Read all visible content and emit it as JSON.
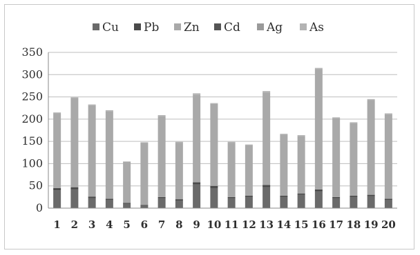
{
  "chart_data": {
    "type": "bar",
    "stacked": true,
    "categories": [
      "1",
      "2",
      "3",
      "4",
      "5",
      "6",
      "7",
      "8",
      "9",
      "10",
      "11",
      "12",
      "13",
      "14",
      "15",
      "16",
      "17",
      "18",
      "19",
      "20"
    ],
    "ylim": [
      0,
      350
    ],
    "yticks": [
      "0",
      "50",
      "100",
      "150",
      "200",
      "250",
      "300",
      "350"
    ],
    "grid": true,
    "legend_position": "top",
    "series": [
      {
        "name": "Cu",
        "color": "#6a6a6a",
        "values": [
          40,
          42,
          22,
          18,
          10,
          5,
          22,
          17,
          53,
          45,
          22,
          25,
          47,
          25,
          30,
          38,
          22,
          25,
          27,
          18
        ]
      },
      {
        "name": "Pb",
        "color": "#4a4a4a",
        "values": [
          5,
          5,
          4,
          3,
          2,
          2,
          3,
          3,
          5,
          5,
          3,
          3,
          5,
          3,
          3,
          4,
          3,
          3,
          3,
          3
        ]
      },
      {
        "name": "Zn",
        "color": "#a9a9a9",
        "values": [
          168,
          200,
          205,
          197,
          92,
          140,
          182,
          127,
          197,
          184,
          122,
          113,
          208,
          137,
          129,
          270,
          177,
          163,
          213,
          190
        ]
      },
      {
        "name": "Cd",
        "color": "#555555",
        "values": [
          0,
          0,
          0,
          0,
          0,
          0,
          0,
          0,
          0,
          0,
          0,
          0,
          0,
          0,
          0,
          0,
          0,
          0,
          0,
          0
        ]
      },
      {
        "name": "Ag",
        "color": "#9a9a9a",
        "values": [
          0,
          0,
          0,
          0,
          0,
          0,
          0,
          0,
          0,
          0,
          0,
          0,
          0,
          0,
          0,
          0,
          0,
          0,
          0,
          0
        ]
      },
      {
        "name": "As",
        "color": "#b3b3b3",
        "values": [
          2,
          2,
          2,
          2,
          1,
          1,
          2,
          2,
          3,
          2,
          2,
          2,
          3,
          2,
          2,
          3,
          2,
          2,
          2,
          2
        ]
      }
    ]
  }
}
